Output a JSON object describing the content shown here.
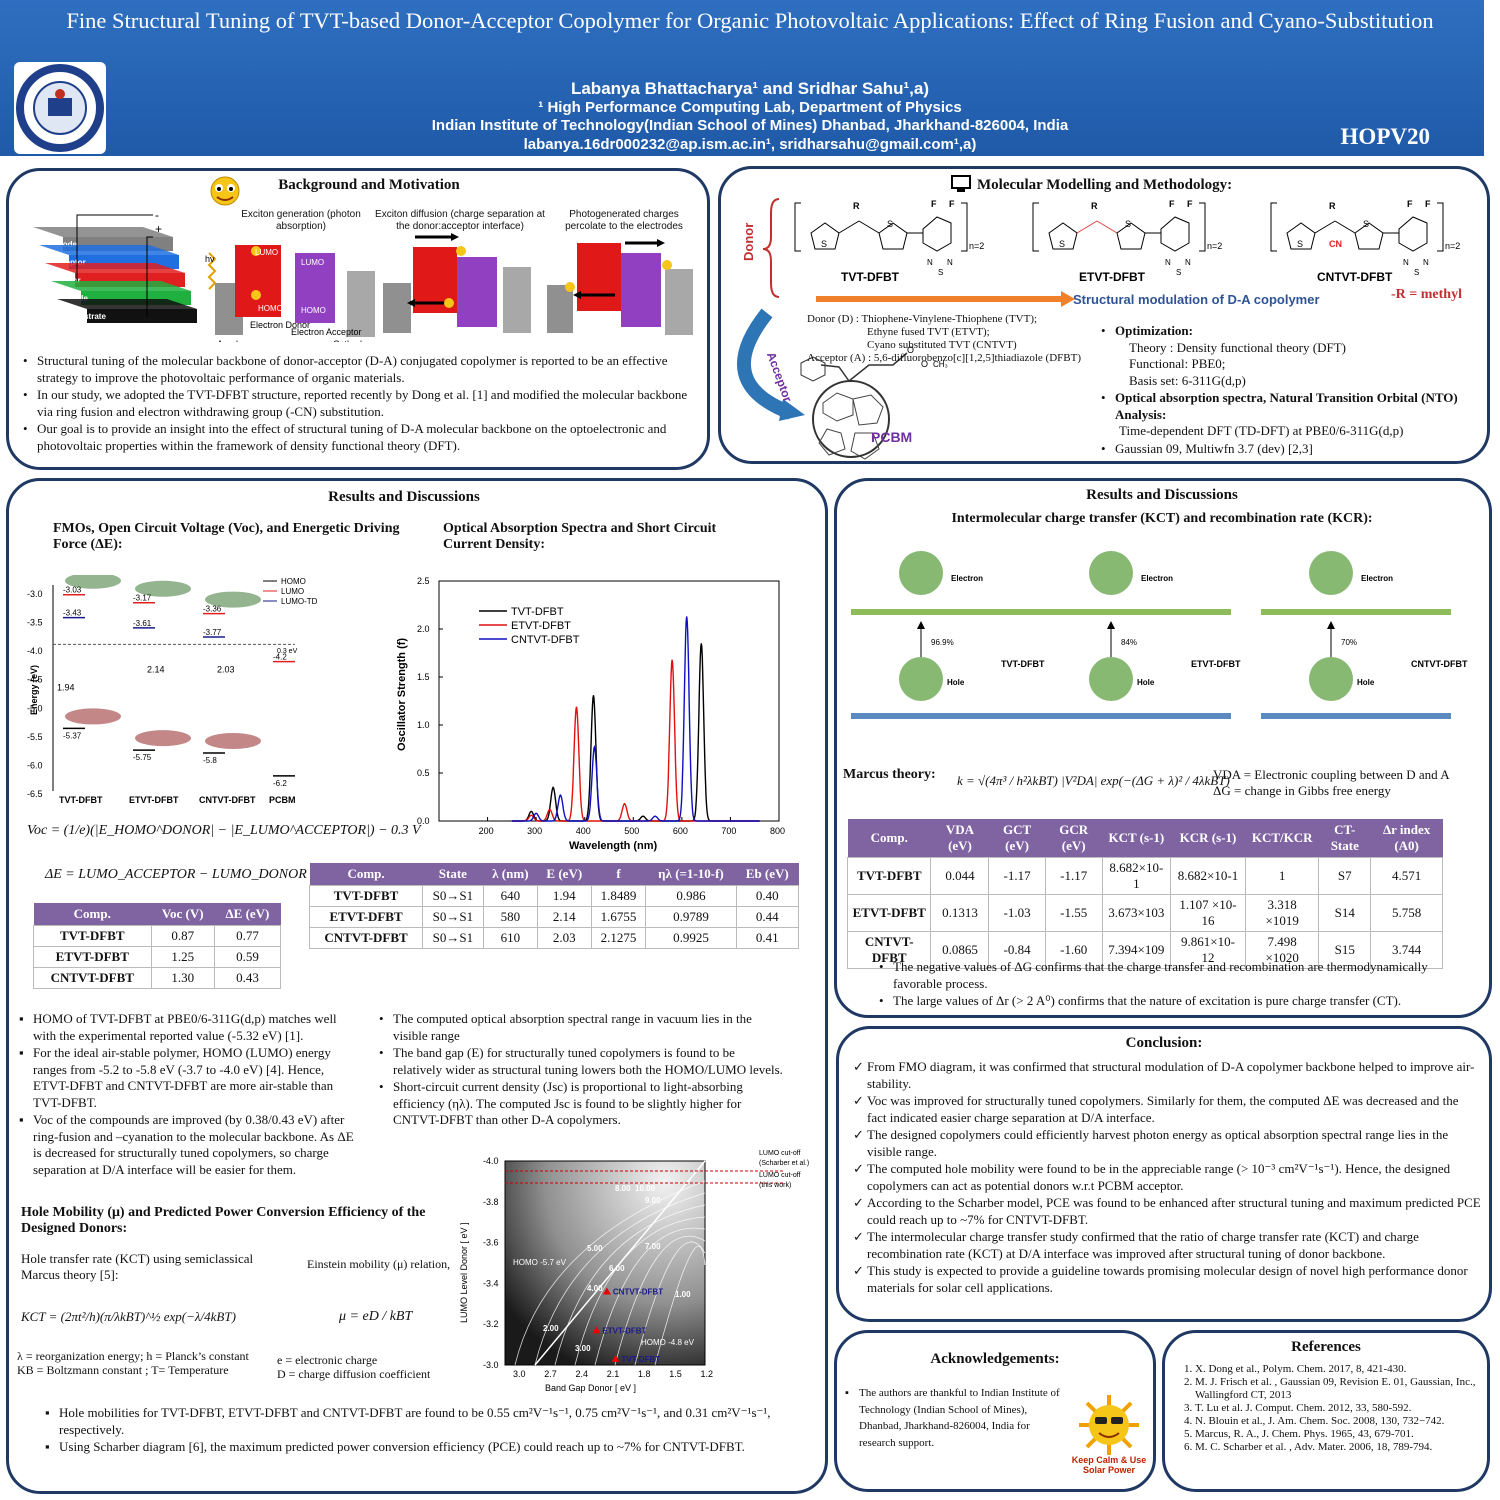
{
  "header": {
    "title": "Fine Structural Tuning of TVT-based Donor-Acceptor Copolymer for Organic Photovoltaic Applications: Effect of Ring Fusion and Cyano-Substitution",
    "authors": "Labanya Bhattacharya¹ and Sridhar Sahu¹,a)",
    "affil1": "¹ High Performance Computing Lab, Department of Physics",
    "affil2": "Indian Institute of Technology(Indian School of Mines) Dhanbad, Jharkhand-826004, India",
    "emails": "labanya.16dr000232@ap.ism.ac.in¹, sridharsahu@gmail.com¹,a)",
    "conference": "HOPV20"
  },
  "background": {
    "title": "Background and Motivation",
    "device_layers": [
      "Cathode",
      "Acceptor",
      "Donor",
      "Anode",
      "Substrate"
    ],
    "device_colors": [
      "#808080",
      "#1f6fe0",
      "#e02020",
      "#20b040",
      "#111111"
    ],
    "steps": [
      "Exciton generation (photon absorption)",
      "Exciton diffusion (charge separation at the donor:acceptor interface)",
      "Photogenerated charges percolate to the electrodes"
    ],
    "labels": {
      "lumo": "LUMO",
      "homo": "HOMO",
      "donor": "Electron Donor",
      "acceptor": "Electron Acceptor",
      "anode": "Anode",
      "cathode": "Cathode",
      "hv": "hv"
    },
    "bullets": [
      "Structural tuning of the molecular backbone of donor-acceptor (D-A) conjugated copolymer is reported to be an effective strategy to improve the photovoltaic performance of organic materials.",
      " In our study, we adopted the TVT-DFBT structure, reported recently by Dong et al. [1] and modified the molecular backbone via ring fusion and electron withdrawing group (-CN) substitution.",
      "Our goal is to provide an insight into the effect of structural tuning of D-A molecular backbone on the optoelectronic and photovoltaic properties within the framework of density functional theory (DFT)."
    ]
  },
  "methods": {
    "title": "Molecular Modelling and Methodology:",
    "donor_label": "Donor",
    "acceptor_label": "Acceptor",
    "molecules": [
      "TVT-DFBT",
      "ETVT-DFBT",
      "CNTVT-DFBT"
    ],
    "arrow_text": "Structural modulation of D-A copolymer",
    "r_methyl": "-R = methyl",
    "donor_desc1": "Donor (D) : Thiophene-Vinylene-Thiophene (TVT);",
    "donor_desc2": "Ethyne fused TVT (ETVT);",
    "donor_desc3": "Cyano substituted TVT (CNTVT)",
    "acceptor_desc": "Acceptor (A) :  5,6-difluorobenzo[c][1,2,5]thiadiazole (DFBT)",
    "pcbm": "PCBM",
    "opt_title": "Optimization:",
    "theory": "Theory : Density functional  theory (DFT)",
    "functional": "Functional: PBE0;",
    "basis": "Basis set: 6-311G(d,p)",
    "opt2_title": "Optical absorption spectra, Natural Transition Orbital (NTO) Analysis:",
    "tddft": "Time-dependent DFT (TD-DFT) at PBE0/6-311G(d,p)",
    "software": "Gaussian 09, Multiwfn 3.7 (dev) [2,3]"
  },
  "results_left": {
    "title": "Results and Discussions",
    "fmo_title": "FMOs, Open Circuit Voltage (Voc), and Energetic Driving Force (ΔE):",
    "optical_title": "Optical Absorption Spectra and Short Circuit Current Density:",
    "voc_formula": "Voc = (1/e)(|E_HOMO^DONOR| − |E_LUMO^ACCEPTOR|) − 0.3 V",
    "de_formula": "ΔE = LUMO_ACCEPTOR − LUMO_DONOR",
    "voc_table": {
      "headers": [
        "Comp.",
        "Voc (V)",
        "ΔE (eV)"
      ],
      "rows": [
        [
          "TVT-DFBT",
          "0.87",
          "0.77"
        ],
        [
          "ETVT-DFBT",
          "1.25",
          "0.59"
        ],
        [
          "CNTVT-DFBT",
          "1.30",
          "0.43"
        ]
      ]
    },
    "abs_table": {
      "headers": [
        "Comp.",
        "State",
        "λ (nm)",
        "E (eV)",
        "f",
        "ηλ (=1-10-f)",
        "Eb (eV)"
      ],
      "rows": [
        [
          "TVT-DFBT",
          "S0→S1",
          "640",
          "1.94",
          "1.8489",
          "0.986",
          "0.40"
        ],
        [
          "ETVT-DFBT",
          "S0→S1",
          "580",
          "2.14",
          "1.6755",
          "0.9789",
          "0.44"
        ],
        [
          "CNTVT-DFBT",
          "S0→S1",
          "610",
          "2.03",
          "2.1275",
          "0.9925",
          "0.41"
        ]
      ]
    },
    "fmo_bullets": [
      "HOMO of TVT-DFBT at PBE0/6-311G(d,p) matches well with the experimental reported value (-5.32 eV) [1].",
      "For the ideal air-stable polymer, HOMO (LUMO) energy ranges from -5.2 to -5.8 eV (-3.7 to -4.0 eV) [4]. Hence, ETVT-DFBT and CNTVT-DFBT are more air-stable than TVT-DFBT.",
      "Voc of the compounds are improved (by 0.38/0.43 eV) after ring-fusion and –cyanation to the molecular backbone. As ΔE is decreased for structurally tuned copolymers, so charge separation at D/A interface will be easier for them."
    ],
    "optical_bullets": [
      "The computed optical absorption spectral range in vacuum lies in the visible range",
      "The band gap (E) for structurally tuned copolymers is found to be relatively wider as structural tuning lowers both the HOMO/LUMO levels.",
      "Short-circuit current density (Jsc) is proportional to light-absorbing efficiency (ηλ). The computed Jsc is found to be slightly higher for CNTVT-DFBT than other D-A copolymers."
    ],
    "mobility_title": "Hole Mobility (μ) and Predicted Power Conversion Efficiency of the Designed Donors:",
    "hole_rate_text": "Hole  transfer rate (KCT) using semiclassical Marcus theory [5]:",
    "einstein_text": "Einstein mobility (μ) relation,",
    "kct_formula": "KCT = (2πt²/h)(π/λkBT)^½ exp(−λ/4kBT)",
    "mu_formula": "μ = eD / kBT",
    "legend1": "λ = reorganization energy; h = Planck’s constant",
    "legend2": "KB = Boltzmann constant ; T= Temperature",
    "legend3": "e = electronic charge",
    "legend4": "D = charge diffusion coefficient",
    "final_bullets": [
      "Hole mobilities for  TVT-DFBT, ETVT-DFBT and CNTVT-DFBT are found to be 0.55 cm²V⁻¹s⁻¹, 0.75 cm²V⁻¹s⁻¹, and  0.31 cm²V⁻¹s⁻¹, respectively.",
      "Using Scharber diagram [6], the maximum predicted power conversion efficiency (PCE) could reach up to ~7% for CNTVT-DFBT."
    ]
  },
  "fmo_chart": {
    "ylabel": "Energy (eV)",
    "legend": [
      "HOMO",
      "LUMO",
      "LUMO-TD"
    ],
    "compounds": [
      "TVT-DFBT",
      "ETVT-DFBT",
      "CNTVT-DFBT",
      "PCBM"
    ],
    "lumo": [
      "-3.03",
      "-3.17",
      "-3.36",
      "-4.2"
    ],
    "lumo_td": [
      "-3.43",
      "-3.61",
      "-3.77"
    ],
    "homo": [
      "-5.37",
      "-5.75",
      "-5.8",
      "-6.2"
    ],
    "gaps": [
      "1.94",
      "2.14",
      "2.03"
    ],
    "offset": "0.3 eV",
    "yticks": [
      "-3.0",
      "-3.5",
      "-4.0",
      "-4.5",
      "-5.0",
      "-5.5",
      "-6.0",
      "-6.5"
    ]
  },
  "chart_data": [
    {
      "type": "line",
      "xlabel": "Wavelength (nm)",
      "ylabel": "Oscillator Strength (f)",
      "xlim": [
        100,
        800
      ],
      "ylim": [
        0,
        2.5
      ],
      "xticks": [
        "200",
        "300",
        "400",
        "500",
        "600",
        "700",
        "800"
      ],
      "yticks": [
        "0.0",
        "0.5",
        "1.0",
        "1.5",
        "2.0",
        "2.5"
      ],
      "series": [
        {
          "name": "TVT-DFBT",
          "color": "#000000",
          "peaks": [
            [
              290,
              0.1
            ],
            [
              335,
              0.35
            ],
            [
              418,
              1.31
            ],
            [
              520,
              0.05
            ],
            [
              640,
              1.85
            ]
          ]
        },
        {
          "name": "ETVT-DFBT",
          "color": "#e01010",
          "peaks": [
            [
              290,
              0.06
            ],
            [
              328,
              0.12
            ],
            [
              383,
              1.19
            ],
            [
              482,
              0.18
            ],
            [
              580,
              1.68
            ]
          ]
        },
        {
          "name": "CNTVT-DFBT",
          "color": "#1010c0",
          "peaks": [
            [
              300,
              0.08
            ],
            [
              350,
              0.27
            ],
            [
              420,
              0.77
            ],
            [
              545,
              0.05
            ],
            [
              610,
              2.13
            ]
          ]
        }
      ]
    },
    {
      "type": "heatmap",
      "xlabel": "Band Gap Donor [ eV ]",
      "ylabel": "LUMO Level Donor [ eV ]",
      "xticks": [
        "3.0",
        "2.7",
        "2.4",
        "2.1",
        "1.8",
        "1.5",
        "1.2"
      ],
      "yticks": [
        "-4.0",
        "-3.8",
        "-3.6",
        "-3.4",
        "-3.2",
        "-3.0"
      ],
      "contours": [
        "2.00",
        "3.00",
        "4.00",
        "5.00",
        "6.00",
        "7.00",
        "8.00",
        "9.00",
        "10.00",
        "1.00"
      ],
      "labels": [
        "HOMO -5.7 eV",
        "HOMO -4.8 eV"
      ],
      "cutoffs": [
        "LUMO cut-off",
        "(Scharber et al.)",
        "LUMO cut-off",
        "(this work)"
      ],
      "points": [
        {
          "name": "CNTVT-DFBT",
          "x": 2.03,
          "y": -3.36
        },
        {
          "name": "ETVT-DFBT",
          "x": 2.14,
          "y": -3.17
        },
        {
          "name": "TVT-DFBT",
          "x": 1.94,
          "y": -3.03
        }
      ]
    }
  ],
  "results_right": {
    "title": "Results and Discussions",
    "subtitle": "Intermolecular charge transfer (KCT) and recombination rate (KCR):",
    "nto": [
      {
        "name": "TVT-DFBT",
        "pct": "96.9%"
      },
      {
        "name": "ETVT-DFBT",
        "pct": "84%"
      },
      {
        "name": "CNTVT-DFBT",
        "pct": "70%"
      }
    ],
    "electron": "Electron",
    "hole": "Hole",
    "marcus_label": "Marcus theory:",
    "marcus_formula": "k = √(4π³ / h²λkBT) |V²DA| exp(−(ΔG + λ)² / 4λkBT)",
    "vda_def": "VDA = Electronic coupling between D and A",
    "dg_def": "ΔG = change in Gibbs free energy",
    "table": {
      "headers": [
        "Comp.",
        "VDA (eV)",
        "GCT (eV)",
        "GCR (eV)",
        "KCT (s-1)",
        "KCR (s-1)",
        "KCT/KCR",
        "CT-State",
        "Δr index (A0)"
      ],
      "rows": [
        [
          "TVT-DFBT",
          "0.044",
          "-1.17",
          "-1.17",
          "8.682×10-1",
          "8.682×10-1",
          "1",
          "S7",
          "4.571"
        ],
        [
          "ETVT-DFBT",
          "0.1313",
          "-1.03",
          "-1.55",
          "3.673×103",
          "1.107 ×10-16",
          "3.318 ×1019",
          "S14",
          "5.758"
        ],
        [
          "CNTVT-DFBT",
          "0.0865",
          "-0.84",
          "-1.60",
          "7.394×109",
          "9.861×10-12",
          "7.498 ×1020",
          "S15",
          "3.744"
        ]
      ]
    },
    "bullets": [
      "The negative values of ΔG confirms that the charge transfer and recombination are thermodynamically favorable process.",
      "The large values of Δr (> 2 A⁰) confirms that the nature of excitation is pure charge transfer (CT)."
    ]
  },
  "conclusion": {
    "title": "Conclusion:",
    "items": [
      "From FMO diagram, it was confirmed that structural modulation of D-A copolymer backbone helped to improve air-stability.",
      "Voc was improved for structurally tuned copolymers. Similarly for them, the computed ΔE was decreased and the fact indicated easier charge separation at D/A interface.",
      "The designed copolymers could efficiently harvest photon energy as optical absorption spectral range lies in the visible range.",
      "The computed hole mobility were found to be in the appreciable range (> 10⁻³ cm²V⁻¹s⁻¹). Hence, the designed copolymers can act as potential donors w.r.t PCBM acceptor.",
      " According to the Scharber model, PCE was found to be enhanced after structural tuning and maximum predicted PCE could reach up to ~7% for CNTVT-DFBT.",
      "The intermolecular charge transfer study confirmed that the ratio of charge transfer rate (KCT) and charge recombination rate (KCT) at D/A interface was improved after structural tuning of donor backbone.",
      "This study is expected to provide a guideline towards promising molecular design of novel high performance donor materials for solar cell applications."
    ]
  },
  "ack": {
    "title": "Acknowledgements:",
    "text": "The authors are thankful to Indian Institute of Technology (Indian School of Mines), Dhanbad, Jharkhand-826004, India for research support.",
    "sun": "Keep Calm & Use Solar Power"
  },
  "refs": {
    "title": "References",
    "items": [
      "X. Dong et al., Polym. Chem. 2017, 8, 421-430.",
      "M. J. Frisch et al. , Gaussian 09, Revision E. 01, Gaussian, Inc., Wallingford CT, 2013",
      "T. Lu et al. J. Comput. Chem. 2012, 33, 580-592.",
      "N. Blouin et al., J. Am. Chem. Soc. 2008, 130, 732−742.",
      "Marcus, R. A., J. Chem. Phys. 1965, 43, 679-701.",
      "M. C. Scharber et al. , Adv. Mater. 2006, 18, 789-794."
    ]
  }
}
